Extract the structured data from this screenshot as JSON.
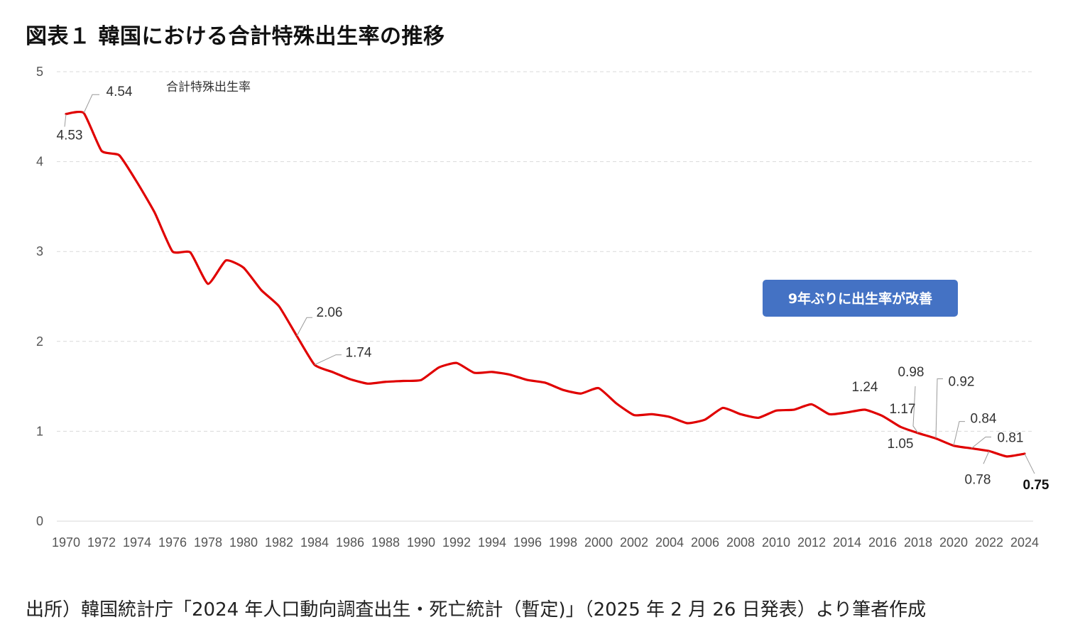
{
  "title": "図表１ 韓国における合計特殊出生率の推移",
  "source": "出所）韓国統計庁「2024 年人口動向調査出生・死亡統計（暫定)」（2025 年 2 月 26 日発表）より筆者作成",
  "callout": {
    "text": "9年ぶりに出生率が改善",
    "color": "#4472C4"
  },
  "chart_data": {
    "type": "line",
    "x": [
      1970,
      1971,
      1972,
      1973,
      1974,
      1975,
      1976,
      1977,
      1978,
      1979,
      1980,
      1981,
      1982,
      1983,
      1984,
      1985,
      1986,
      1987,
      1988,
      1989,
      1990,
      1991,
      1992,
      1993,
      1994,
      1995,
      1996,
      1997,
      1998,
      1999,
      2000,
      2001,
      2002,
      2003,
      2004,
      2005,
      2006,
      2007,
      2008,
      2009,
      2010,
      2011,
      2012,
      2013,
      2014,
      2015,
      2016,
      2017,
      2018,
      2019,
      2020,
      2021,
      2022,
      2023,
      2024
    ],
    "series": [
      {
        "name": "合計特殊出生率",
        "color": "#E00000",
        "values": [
          4.53,
          4.54,
          4.12,
          4.07,
          3.77,
          3.43,
          3.0,
          2.99,
          2.64,
          2.9,
          2.82,
          2.57,
          2.39,
          2.06,
          1.74,
          1.66,
          1.58,
          1.53,
          1.55,
          1.56,
          1.57,
          1.71,
          1.76,
          1.65,
          1.66,
          1.63,
          1.57,
          1.54,
          1.46,
          1.42,
          1.48,
          1.31,
          1.18,
          1.19,
          1.16,
          1.09,
          1.13,
          1.26,
          1.19,
          1.15,
          1.23,
          1.24,
          1.3,
          1.19,
          1.21,
          1.24,
          1.17,
          1.05,
          0.98,
          0.92,
          0.84,
          0.81,
          0.78,
          0.72,
          0.75
        ]
      }
    ],
    "labels": [
      {
        "x": 1970,
        "text": "4.53"
      },
      {
        "x": 1971,
        "text": "4.54"
      },
      {
        "x": 1983,
        "text": "2.06"
      },
      {
        "x": 1984,
        "text": "1.74"
      },
      {
        "x": 2015,
        "text": "1.24"
      },
      {
        "x": 2016,
        "text": "1.17"
      },
      {
        "x": 2017,
        "text": "1.05"
      },
      {
        "x": 2018,
        "text": "0.98"
      },
      {
        "x": 2019,
        "text": "0.92"
      },
      {
        "x": 2020,
        "text": "0.84"
      },
      {
        "x": 2021,
        "text": "0.81"
      },
      {
        "x": 2022,
        "text": "0.78"
      },
      {
        "x": 2024,
        "text": "0.75",
        "bold": true
      }
    ],
    "ylim": [
      0,
      5
    ],
    "yticks": [
      "0",
      "1",
      "2",
      "3",
      "4",
      "5"
    ],
    "xticks": [
      "1970",
      "1972",
      "1974",
      "1976",
      "1978",
      "1980",
      "1982",
      "1984",
      "1986",
      "1988",
      "1990",
      "1992",
      "1994",
      "1996",
      "1998",
      "2000",
      "2002",
      "2004",
      "2006",
      "2008",
      "2010",
      "2012",
      "2014",
      "2016",
      "2018",
      "2020",
      "2022",
      "2024"
    ],
    "xlabel": "",
    "ylabel": "",
    "grid": true,
    "legend": "none"
  }
}
